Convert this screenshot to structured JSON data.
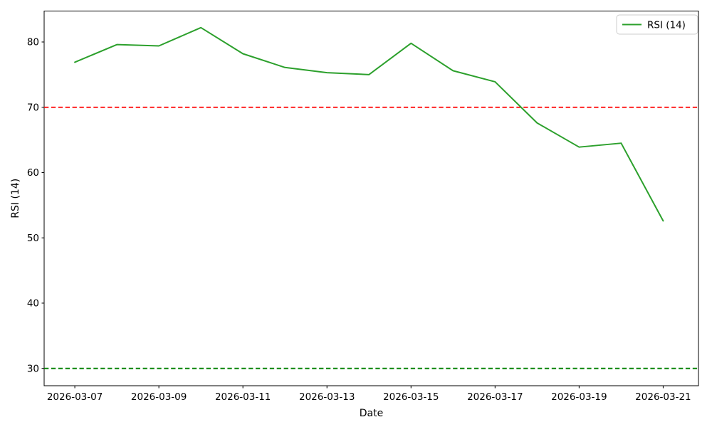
{
  "chart_data": {
    "type": "line",
    "title": "",
    "xlabel": "Date",
    "ylabel": "RSI (14)",
    "x": [
      "2026-03-07",
      "2026-03-08",
      "2026-03-09",
      "2026-03-10",
      "2026-03-11",
      "2026-03-12",
      "2026-03-13",
      "2026-03-14",
      "2026-03-15",
      "2026-03-16",
      "2026-03-17",
      "2026-03-18",
      "2026-03-19",
      "2026-03-20",
      "2026-03-21"
    ],
    "series": [
      {
        "name": "RSI (14)",
        "color": "#2ca02c",
        "values": [
          76.9,
          79.6,
          79.4,
          82.2,
          78.2,
          76.1,
          75.3,
          75.0,
          79.8,
          75.6,
          73.9,
          67.6,
          63.9,
          64.5,
          52.6
        ]
      }
    ],
    "reference_lines": [
      {
        "name": "overbought-level",
        "value": 70,
        "color": "#ff0000",
        "style": "dashed"
      },
      {
        "name": "oversold-level",
        "value": 30,
        "color": "#008000",
        "style": "dashed"
      }
    ],
    "x_tick_labels": [
      "2026-03-07",
      "2026-03-09",
      "2026-03-11",
      "2026-03-13",
      "2026-03-15",
      "2026-03-17",
      "2026-03-19",
      "2026-03-21"
    ],
    "y_ticks": [
      30,
      40,
      50,
      60,
      70,
      80
    ],
    "ylim": [
      27.35,
      84.74
    ],
    "xlim_index": [
      -0.73,
      14.84
    ],
    "grid": false,
    "legend": {
      "position": "upper right",
      "entries": [
        "RSI (14)"
      ]
    },
    "spine_color": "#000000",
    "legend_border_color": "#cccccc"
  }
}
